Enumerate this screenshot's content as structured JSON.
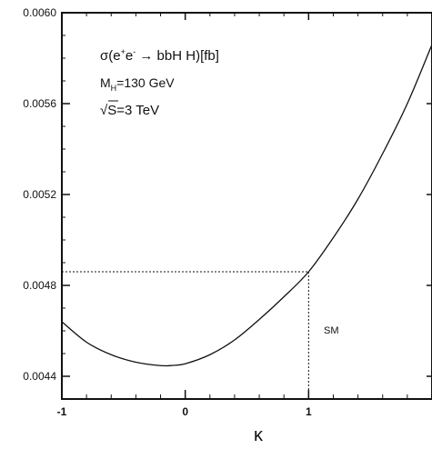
{
  "chart_data": {
    "type": "line",
    "xlabel": "κ",
    "ylabel": "",
    "xlim": [
      -1,
      2
    ],
    "ylim": [
      0.0043,
      0.006
    ],
    "xticks": [
      "-1",
      "0",
      "1"
    ],
    "yticks": [
      "0.0044",
      "0.0048",
      "0.0052",
      "0.0056",
      "0.0060"
    ],
    "annotations": {
      "process_prefix": "σ(e",
      "process_rest": "e",
      "process_tail": " → bbH H)[fb]",
      "mass_prefix": "M",
      "mass_sub": "H",
      "mass_value": "=130 GeV",
      "energy_prefix": "√",
      "energy_rest": "S=3 TeV",
      "sm_label": "SM"
    },
    "reference": {
      "x": 1.0,
      "y": 0.00486
    },
    "series": [
      {
        "x": [
          -1.0,
          -0.8,
          -0.6,
          -0.4,
          -0.2,
          -0.1,
          0.0,
          0.2,
          0.4,
          0.6,
          0.8,
          1.0,
          1.2,
          1.4,
          1.6,
          1.8,
          2.0
        ],
        "y": [
          0.00464,
          0.00455,
          0.004495,
          0.004462,
          0.004447,
          0.004448,
          0.004455,
          0.004495,
          0.00456,
          0.00465,
          0.00475,
          0.00486,
          0.00501,
          0.00518,
          0.00538,
          0.0056,
          0.00586
        ]
      }
    ]
  }
}
